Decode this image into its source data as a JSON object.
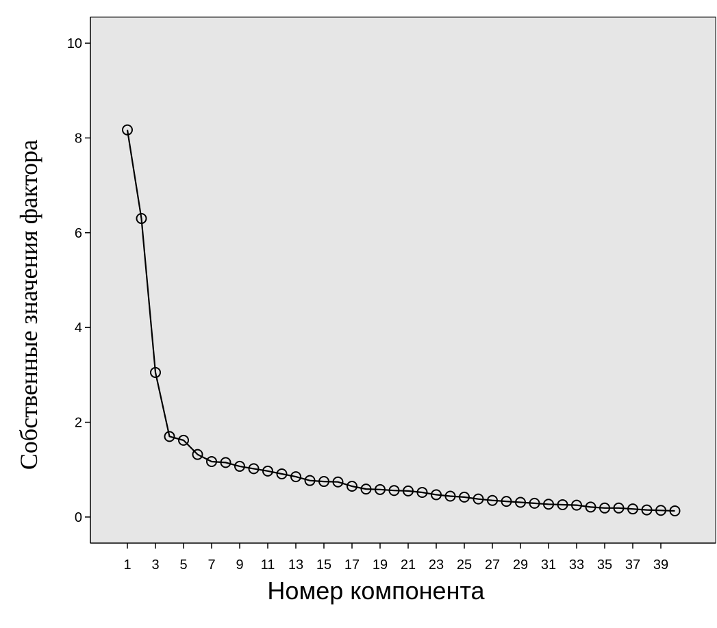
{
  "chart_data": {
    "type": "line",
    "title": "",
    "xlabel": "Номер компонента",
    "ylabel": "Собственные значения фактора",
    "x": [
      1,
      2,
      3,
      4,
      5,
      6,
      7,
      8,
      9,
      10,
      11,
      12,
      13,
      14,
      15,
      16,
      17,
      18,
      19,
      20,
      21,
      22,
      23,
      24,
      25,
      26,
      27,
      28,
      29,
      30,
      31,
      32,
      33,
      34,
      35,
      36,
      37,
      38,
      39,
      40
    ],
    "series": [
      {
        "values": [
          8.17,
          6.3,
          3.05,
          1.7,
          1.62,
          1.32,
          1.17,
          1.15,
          1.07,
          1.02,
          0.97,
          0.91,
          0.85,
          0.77,
          0.75,
          0.74,
          0.65,
          0.59,
          0.58,
          0.56,
          0.55,
          0.52,
          0.47,
          0.44,
          0.42,
          0.38,
          0.35,
          0.33,
          0.31,
          0.29,
          0.27,
          0.26,
          0.25,
          0.21,
          0.19,
          0.19,
          0.17,
          0.15,
          0.14,
          0.13
        ]
      }
    ],
    "xticks": [
      "1",
      "3",
      "5",
      "7",
      "9",
      "11",
      "13",
      "15",
      "17",
      "19",
      "21",
      "23",
      "25",
      "27",
      "29",
      "31",
      "33",
      "35",
      "37",
      "39"
    ],
    "yticks": [
      "0",
      "2",
      "4",
      "6",
      "8",
      "10"
    ],
    "ylim": [
      -0.55,
      10.55
    ],
    "grid": false,
    "plot_background": "#e6e6e6",
    "line_color": "#000000",
    "marker": "open-circle"
  }
}
